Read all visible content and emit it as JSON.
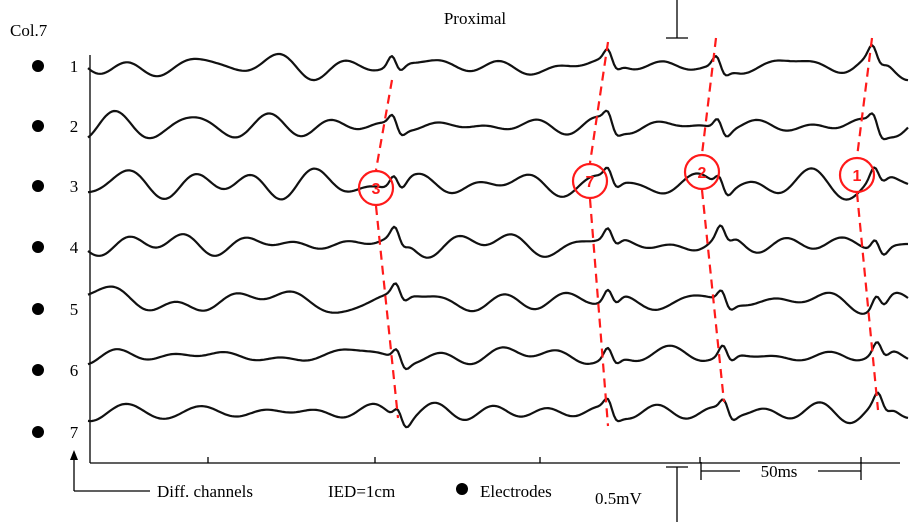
{
  "chart_data": {
    "type": "line",
    "title": "Proximal",
    "column_label": "Col.7",
    "channels": [
      "1",
      "2",
      "3",
      "4",
      "5",
      "6",
      "7"
    ],
    "legend": {
      "diff_channels": "Diff. channels",
      "ied": "IED=1cm",
      "electrodes": "Electrodes"
    },
    "scale_bars": {
      "time_label": "50ms",
      "amplitude_label": "0.5mV"
    },
    "wave_fronts": [
      {
        "label": "3"
      },
      {
        "label": "7"
      },
      {
        "label": "2"
      },
      {
        "label": "1"
      }
    ],
    "colors": {
      "trace": "#111111",
      "propagation": "#ff1a1a"
    }
  }
}
